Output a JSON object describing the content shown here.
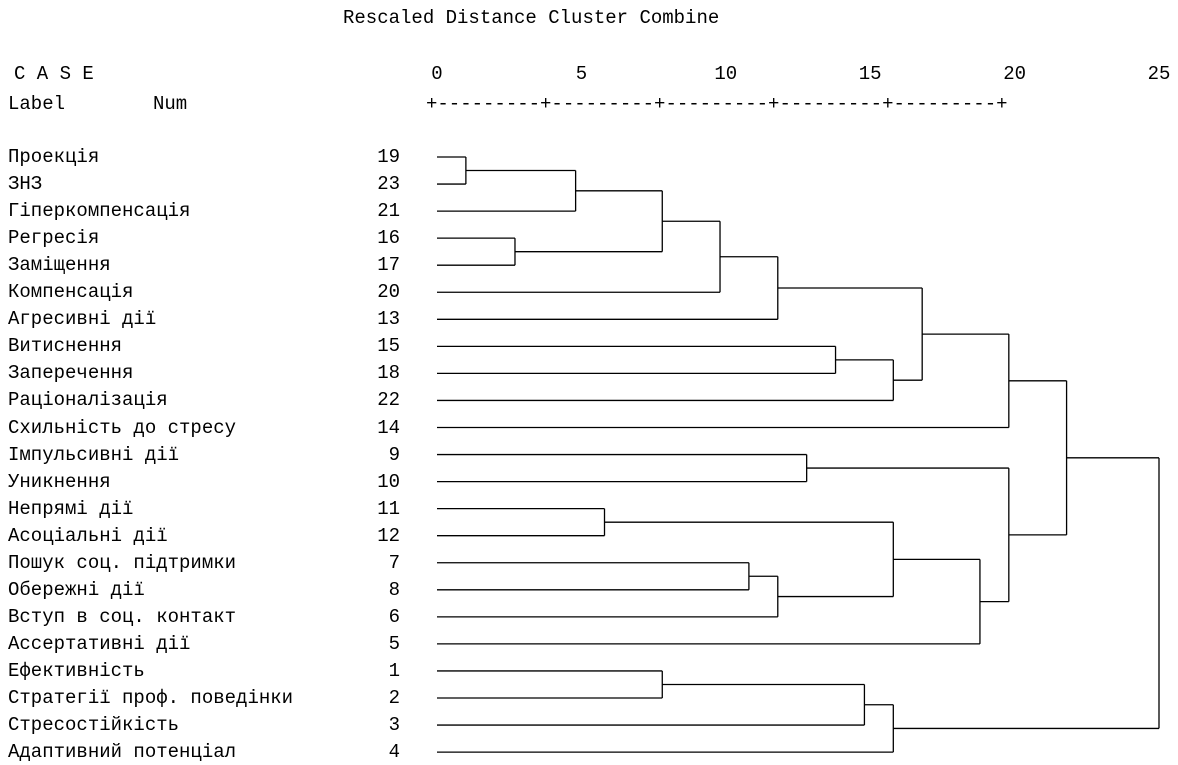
{
  "title": "Rescaled Distance Cluster Combine",
  "case_header": "C A S E",
  "label_header": "Label",
  "num_header": "Num",
  "axis_line": "+---------+---------+---------+---------+---------+",
  "axis_ticks": [
    "0",
    "5",
    "10",
    "15",
    "20",
    "25"
  ],
  "cases": [
    {
      "label": "Проекція",
      "num": "19"
    },
    {
      "label": "ЗНЗ",
      "num": "23"
    },
    {
      "label": "Гіперкомпенсація",
      "num": "21"
    },
    {
      "label": "Регресія",
      "num": "16"
    },
    {
      "label": "Заміщення",
      "num": "17"
    },
    {
      "label": "Компенсація",
      "num": "20"
    },
    {
      "label": "Агресивні дії",
      "num": "13"
    },
    {
      "label": "Витиснення",
      "num": "15"
    },
    {
      "label": "Заперечення",
      "num": "18"
    },
    {
      "label": "Раціоналізація",
      "num": "22"
    },
    {
      "label": "Схильність до стресу",
      "num": "14"
    },
    {
      "label": "Імпульсивні дії",
      "num": "9"
    },
    {
      "label": "Уникнення",
      "num": "10"
    },
    {
      "label": "Непрямі дії",
      "num": "11"
    },
    {
      "label": "Асоціальні дії",
      "num": "12"
    },
    {
      "label": "Пошук соц. підтримки",
      "num": "7"
    },
    {
      "label": "Обережні дії",
      "num": "8"
    },
    {
      "label": "Вступ в соц. контакт",
      "num": "6"
    },
    {
      "label": "Ассертативні дії",
      "num": "5"
    },
    {
      "label": "Ефективність",
      "num": "1"
    },
    {
      "label": "Стратегії проф. поведінки",
      "num": "2"
    },
    {
      "label": "Стресостійкість",
      "num": "3"
    },
    {
      "label": "Адаптивний потенціал",
      "num": "4"
    }
  ],
  "merges": [
    {
      "a": 0,
      "b": 1,
      "dist": 1.0
    },
    {
      "a": "m0",
      "b": 2,
      "dist": 4.8
    },
    {
      "a": 3,
      "b": 4,
      "dist": 2.7
    },
    {
      "a": "m1",
      "b": "m2",
      "dist": 7.8
    },
    {
      "a": "m3",
      "b": 5,
      "dist": 9.8
    },
    {
      "a": "m4",
      "b": 6,
      "dist": 11.8
    },
    {
      "a": 7,
      "b": 8,
      "dist": 13.8
    },
    {
      "a": "m6",
      "b": 9,
      "dist": 15.8
    },
    {
      "a": "m5",
      "b": "m7",
      "dist": 16.8
    },
    {
      "a": "m8",
      "b": 10,
      "dist": 19.8
    },
    {
      "a": 11,
      "b": 12,
      "dist": 12.8
    },
    {
      "a": 13,
      "b": 14,
      "dist": 5.8
    },
    {
      "a": 15,
      "b": 16,
      "dist": 10.8
    },
    {
      "a": "m12",
      "b": 17,
      "dist": 11.8
    },
    {
      "a": "m11",
      "b": "m13",
      "dist": 15.8
    },
    {
      "a": "m14",
      "b": 18,
      "dist": 18.8
    },
    {
      "a": "m10",
      "b": "m15",
      "dist": 19.8
    },
    {
      "a": "m9",
      "b": "m16",
      "dist": 21.8
    },
    {
      "a": 19,
      "b": 20,
      "dist": 7.8
    },
    {
      "a": "m18",
      "b": 21,
      "dist": 14.8
    },
    {
      "a": "m19",
      "b": 22,
      "dist": 15.8
    },
    {
      "a": "m17",
      "b": "m20",
      "dist": 25.0
    }
  ]
}
